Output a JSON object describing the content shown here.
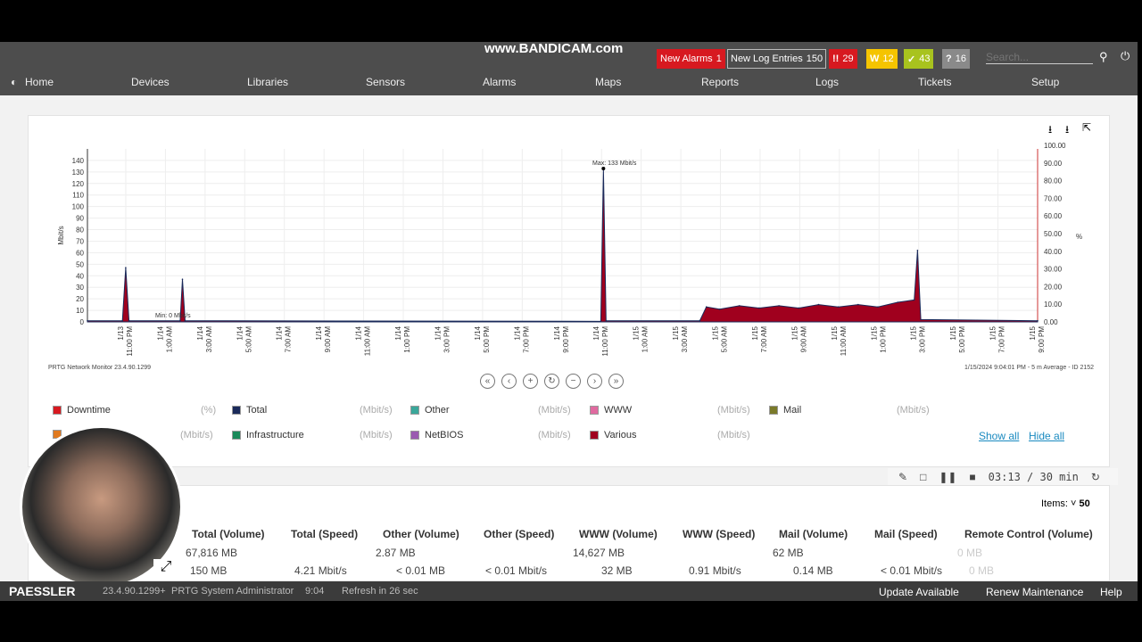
{
  "watermark": "www.BANDICAM.com",
  "header": {
    "new_alarms": {
      "label": "New Alarms",
      "count": "1"
    },
    "new_log": {
      "label": "New Log Entries",
      "count": "150"
    },
    "status": [
      {
        "icon": "!!",
        "count": "29",
        "color": "#d71920"
      },
      {
        "icon": "W",
        "count": "12",
        "color": "#f5c400"
      },
      {
        "icon": "✓",
        "count": "43",
        "color": "#a8c31e"
      },
      {
        "icon": "?",
        "count": "16",
        "color": "#8a8a8a"
      }
    ],
    "search_placeholder": "Search...",
    "nav": [
      "Home",
      "Devices",
      "Libraries",
      "Sensors",
      "Alarms",
      "Maps",
      "Reports",
      "Logs",
      "Tickets",
      "Setup"
    ]
  },
  "chart_data": {
    "type": "area",
    "ylabel": "Mbit/s",
    "y2label": "%",
    "ylim": [
      0,
      150
    ],
    "yticks": [
      0,
      10,
      20,
      30,
      40,
      50,
      60,
      70,
      80,
      90,
      100,
      110,
      120,
      130,
      140
    ],
    "y2lim": [
      0,
      100
    ],
    "y2ticks": [
      "0.00",
      "10.00",
      "20.00",
      "30.00",
      "40.00",
      "50.00",
      "60.00",
      "70.00",
      "80.00",
      "90.00",
      "100.00"
    ],
    "xrange": [
      "2024-01-13T21:04",
      "2024-01-15T21:04"
    ],
    "xticks": [
      "1/13|11:00 PM",
      "1/14|1:00 AM",
      "1/14|3:00 AM",
      "1/14|5:00 AM",
      "1/14|7:00 AM",
      "1/14|9:00 AM",
      "1/14|11:00 AM",
      "1/14|1:00 PM",
      "1/14|3:00 PM",
      "1/14|5:00 PM",
      "1/14|7:00 PM",
      "1/14|9:00 PM",
      "1/14|11:00 PM",
      "1/15|1:00 AM",
      "1/15|3:00 AM",
      "1/15|5:00 AM",
      "1/15|7:00 AM",
      "1/15|9:00 AM",
      "1/15|11:00 AM",
      "1/15|1:00 PM",
      "1/15|3:00 PM",
      "1/15|5:00 PM",
      "1/15|7:00 PM",
      "1/15|9:00 PM"
    ],
    "grid": true,
    "annotations": {
      "max": "Max: 133 Mbit/s",
      "min": "Min: 0 Mbit/s"
    },
    "series": [
      {
        "color": "#a0001e",
        "points": [
          [
            "2024-01-13T21:04",
            1
          ],
          [
            "2024-01-13T22:50",
            1
          ],
          [
            "2024-01-13T23:00",
            47
          ],
          [
            "2024-01-13T23:10",
            1
          ],
          [
            "2024-01-14T01:45",
            1
          ],
          [
            "2024-01-14T01:52",
            37
          ],
          [
            "2024-01-14T02:00",
            1
          ],
          [
            "2024-01-14T23:00",
            0.5
          ],
          [
            "2024-01-14T23:08",
            133
          ],
          [
            "2024-01-14T23:16",
            1
          ],
          [
            "2024-01-15T04:00",
            1
          ],
          [
            "2024-01-15T04:20",
            13
          ],
          [
            "2024-01-15T05:00",
            11
          ],
          [
            "2024-01-15T06:00",
            14
          ],
          [
            "2024-01-15T07:00",
            12
          ],
          [
            "2024-01-15T08:00",
            14
          ],
          [
            "2024-01-15T09:00",
            12
          ],
          [
            "2024-01-15T10:00",
            15
          ],
          [
            "2024-01-15T11:00",
            13
          ],
          [
            "2024-01-15T12:00",
            15
          ],
          [
            "2024-01-15T13:00",
            13
          ],
          [
            "2024-01-15T14:00",
            17
          ],
          [
            "2024-01-15T14:50",
            19
          ],
          [
            "2024-01-15T15:00",
            62
          ],
          [
            "2024-01-15T15:10",
            2
          ],
          [
            "2024-01-15T21:04",
            1
          ]
        ]
      }
    ]
  },
  "chart_footer_left": "PRTG Network Monitor 23.4.90.1299",
  "chart_footer_right": "1/15/2024 9:04:01 PM - 5 m Average - ID 2152",
  "legend": [
    {
      "name": "Downtime",
      "unit": "(%)",
      "color": "#d71920"
    },
    {
      "name": "Total",
      "unit": "(Mbit/s)",
      "color": "#1a2a5a"
    },
    {
      "name": "Other",
      "unit": "(Mbit/s)",
      "color": "#3aa79a"
    },
    {
      "name": "WWW",
      "unit": "(Mbit/s)",
      "color": "#e06aa0"
    },
    {
      "name": "Mail",
      "unit": "(Mbit/s)",
      "color": "#7a7a2a"
    },
    {
      "name": "",
      "unit": "(Mbit/s)",
      "color": "#e07a20"
    },
    {
      "name": "Infrastructure",
      "unit": "(Mbit/s)",
      "color": "#1a8a5a"
    },
    {
      "name": "NetBIOS",
      "unit": "(Mbit/s)",
      "color": "#9a5ab0"
    },
    {
      "name": "Various",
      "unit": "(Mbit/s)",
      "color": "#a0001e"
    }
  ],
  "show_all": "Show all",
  "hide_all": "Hide all",
  "table": {
    "items_label": "Items:",
    "items_value": "50",
    "headers": [
      "Total (Volume)",
      "Total (Speed)",
      "Other (Volume)",
      "Other (Speed)",
      "WWW (Volume)",
      "WWW (Speed)",
      "Mail (Volume)",
      "Mail (Speed)",
      "Remote Control (Volume)"
    ],
    "row1": [
      "67,816 MB",
      "",
      "2.87 MB",
      "",
      "14,627 MB",
      "",
      "62 MB",
      "",
      "0 MB"
    ],
    "row2": [
      "150 MB",
      "4.21 Mbit/s",
      "< 0.01 MB",
      "< 0.01 Mbit/s",
      "32 MB",
      "0.91 Mbit/s",
      "0.14 MB",
      "< 0.01 Mbit/s",
      "0 MB"
    ]
  },
  "recorder": {
    "time": "03:13 / 30 min"
  },
  "footer": {
    "brand": "PAESSLER",
    "version": "23.4.90.1299+",
    "user": "PRTG System Administrator",
    "time": "9:04",
    "refresh": "Refresh in 26 sec",
    "update": "Update Available",
    "renew": "Renew Maintenance",
    "help": "Help"
  }
}
